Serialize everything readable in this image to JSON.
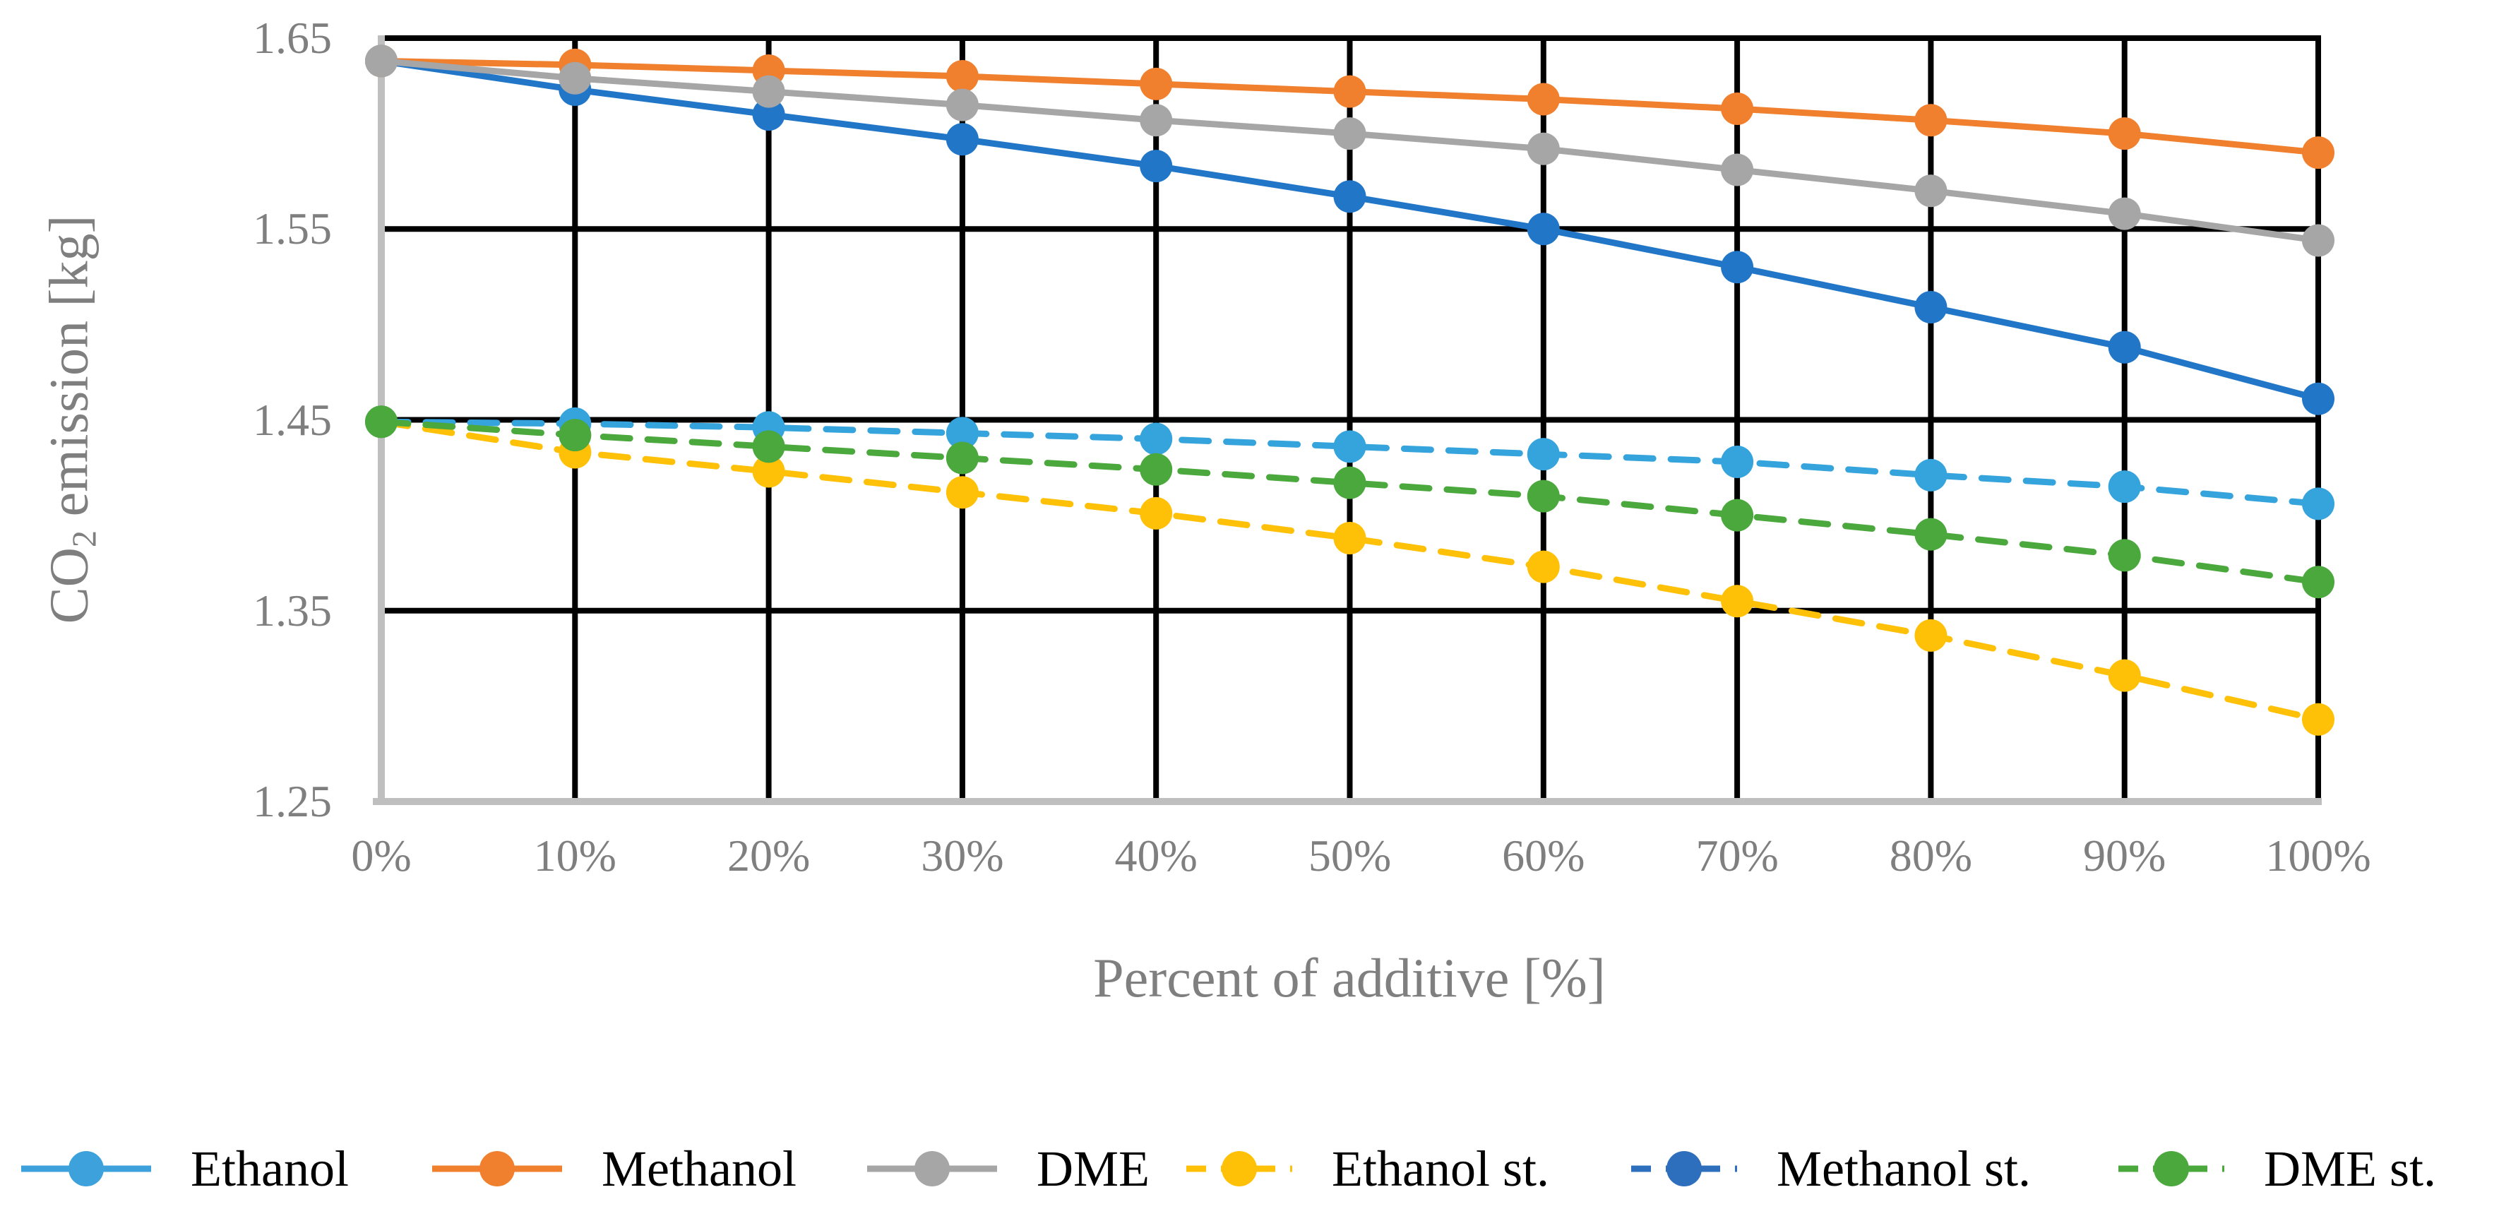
{
  "figure": {
    "y_title_prefix": "CO",
    "y_title_sub": "2",
    "y_title_suffix": " emission [kg]",
    "x_title": "Percent of additive [%]"
  },
  "chart_data": {
    "type": "line",
    "title": "",
    "xlabel": "Percent of additive [%]",
    "ylabel": "CO2 emission [kg]",
    "x": [
      0,
      10,
      20,
      30,
      40,
      50,
      60,
      70,
      80,
      90,
      100
    ],
    "x_tick_labels": [
      "0%",
      "10%",
      "20%",
      "30%",
      "40%",
      "50%",
      "60%",
      "70%",
      "80%",
      "90%",
      "100%"
    ],
    "y_ticks": [
      1.65,
      1.55,
      1.45,
      1.35,
      1.25
    ],
    "y_tick_labels": [
      "1.65",
      "1.55",
      "1.45",
      "1.35",
      "1.25"
    ],
    "ylim": [
      1.25,
      1.65
    ],
    "grid": true,
    "grid_color": "#000000",
    "axis_color": "#bfbfbf",
    "tick_label_color": "#7f7f7f",
    "legend_position": "bottom",
    "legend_text_color": "#000000",
    "series": [
      {
        "name": "Ethanol",
        "style": "solid",
        "chart_color": "#2176c7",
        "legend_color": "#3da2dc",
        "values": [
          1.638,
          1.623,
          1.61,
          1.597,
          1.583,
          1.567,
          1.55,
          1.53,
          1.509,
          1.488,
          1.461
        ]
      },
      {
        "name": "Methanol",
        "style": "solid",
        "chart_color": "#f07f2e",
        "legend_color": "#f07f2e",
        "values": [
          1.638,
          1.636,
          1.633,
          1.63,
          1.626,
          1.622,
          1.618,
          1.613,
          1.607,
          1.6,
          1.59
        ]
      },
      {
        "name": "DME",
        "style": "solid",
        "chart_color": "#a6a6a6",
        "legend_color": "#a6a6a6",
        "values": [
          1.638,
          1.629,
          1.622,
          1.615,
          1.607,
          1.6,
          1.592,
          1.581,
          1.57,
          1.558,
          1.544
        ]
      },
      {
        "name": "Ethanol st.",
        "style": "dashed",
        "chart_color": "#ffc008",
        "legend_color": "#ffc008",
        "values": [
          1.449,
          1.433,
          1.423,
          1.412,
          1.401,
          1.388,
          1.373,
          1.355,
          1.337,
          1.316,
          1.293
        ]
      },
      {
        "name": "Methanol st.",
        "style": "dashed",
        "chart_color": "#35a3dc",
        "legend_color": "#2e6fbd",
        "values": [
          1.449,
          1.448,
          1.446,
          1.443,
          1.44,
          1.436,
          1.432,
          1.428,
          1.421,
          1.415,
          1.406
        ]
      },
      {
        "name": "DME st.",
        "style": "dashed",
        "chart_color": "#4aa83c",
        "legend_color": "#4aa83c",
        "values": [
          1.449,
          1.442,
          1.436,
          1.43,
          1.424,
          1.417,
          1.41,
          1.4,
          1.39,
          1.379,
          1.365
        ]
      }
    ]
  }
}
